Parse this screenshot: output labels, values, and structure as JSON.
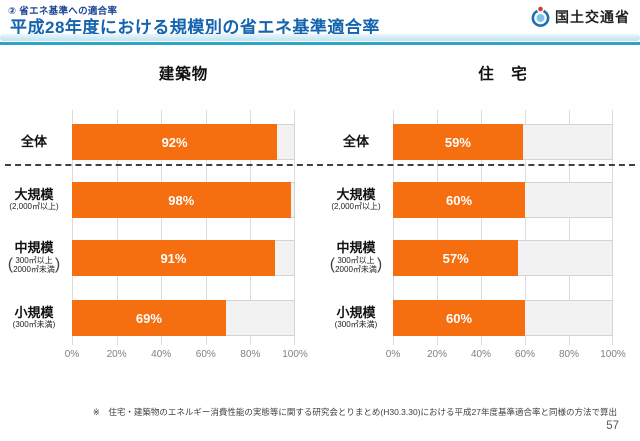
{
  "header": {
    "eyebrow": "② 省エネ基準への適合率",
    "title": "平成28年度における規模別の省エネ基準適合率",
    "agency": "国土交通省"
  },
  "axis_ticks": [
    "0%",
    "20%",
    "40%",
    "60%",
    "80%",
    "100%"
  ],
  "charts": [
    {
      "title": "建築物",
      "rows": [
        {
          "label": "全体",
          "value": 92,
          "value_label": "92%"
        },
        {
          "label": "大規模",
          "sublabel": "(2,000㎡以上)",
          "value": 98,
          "value_label": "98%"
        },
        {
          "label": "中規模",
          "sublabel_lines": [
            "300㎡以上",
            "2000㎡未満"
          ],
          "value": 91,
          "value_label": "91%"
        },
        {
          "label": "小規模",
          "sublabel": "(300㎡未満)",
          "value": 69,
          "value_label": "69%"
        }
      ]
    },
    {
      "title": "住　宅",
      "rows": [
        {
          "label": "全体",
          "value": 59,
          "value_label": "59%"
        },
        {
          "label": "大規模",
          "sublabel": "(2,000㎡以上)",
          "value": 60,
          "value_label": "60%"
        },
        {
          "label": "中規模",
          "sublabel_lines": [
            "300㎡以上",
            "2000㎡未満"
          ],
          "value": 57,
          "value_label": "57%"
        },
        {
          "label": "小規模",
          "sublabel": "(300㎡未満)",
          "value": 60,
          "value_label": "60%"
        }
      ]
    }
  ],
  "footnote": "※　住宅・建築物のエネルギー消費性能の実態等に関する研究会とりまとめ(H30.3.30)における平成27年度基準適合率と同様の方法で算出",
  "page_number": "57",
  "colors": {
    "bar_fill": "#F56E0F",
    "bar_track": "#F2F2F2",
    "title_blue": "#1463AE",
    "eyebrow_blue": "#1C4593",
    "header_rule_light": "#BFE2F2",
    "header_rule_teal": "#2DA4C4",
    "logo_red": "#D23B2F",
    "logo_blue": "#1A6FB5"
  },
  "chart_data": [
    {
      "type": "bar",
      "orientation": "horizontal",
      "title": "建築物",
      "categories": [
        "全体",
        "大規模(2,000㎡以上)",
        "中規模(300㎡以上2000㎡未満)",
        "小規模(300㎡未満)"
      ],
      "values": [
        92,
        98,
        91,
        69
      ],
      "unit": "%",
      "xlim": [
        0,
        100
      ],
      "x_ticks": [
        "0%",
        "20%",
        "40%",
        "60%",
        "80%",
        "100%"
      ],
      "grid": true,
      "bar_color": "#F56E0F"
    },
    {
      "type": "bar",
      "orientation": "horizontal",
      "title": "住宅",
      "categories": [
        "全体",
        "大規模(2,000㎡以上)",
        "中規模(300㎡以上2000㎡未満)",
        "小規模(300㎡未満)"
      ],
      "values": [
        59,
        60,
        57,
        60
      ],
      "unit": "%",
      "xlim": [
        0,
        100
      ],
      "x_ticks": [
        "0%",
        "20%",
        "40%",
        "60%",
        "80%",
        "100%"
      ],
      "grid": true,
      "bar_color": "#F56E0F"
    }
  ]
}
